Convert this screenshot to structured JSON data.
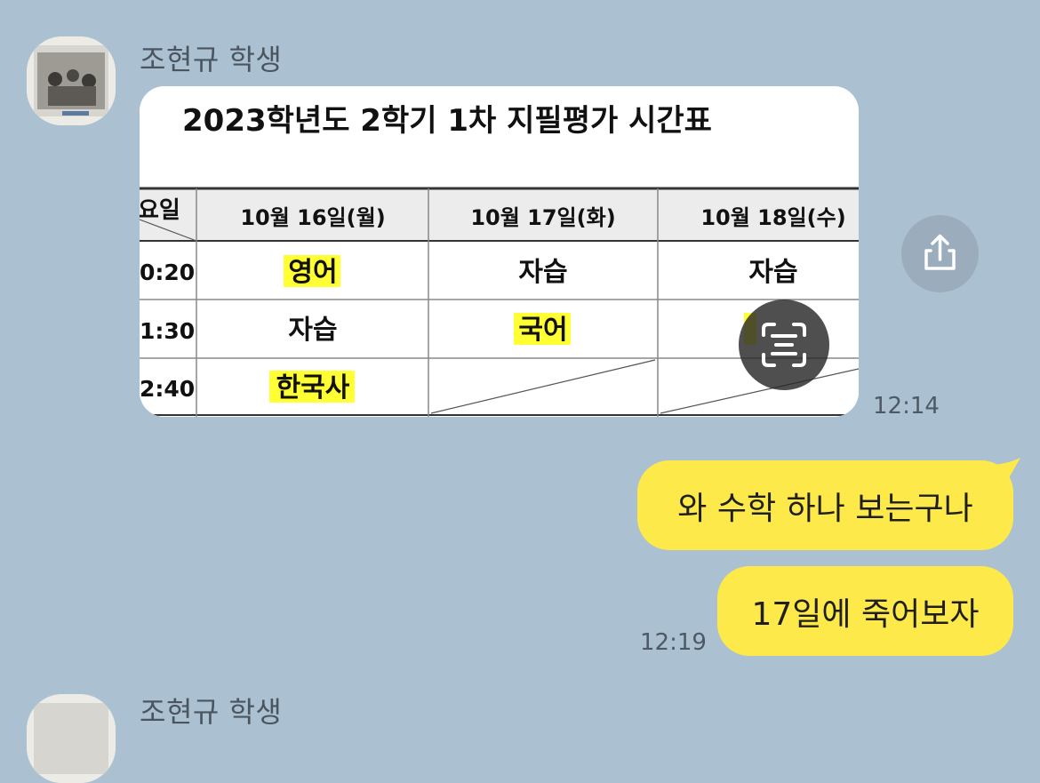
{
  "messages": {
    "incoming_image": {
      "sender": "조현규 학생",
      "time": "12:14",
      "image": {
        "title": "2023학년도 2학기 1차 지필평가 시간표",
        "corner_header": "요일",
        "columns": [
          "10월 16일(월)",
          "10월 17일(화)",
          "10월 18일(수)"
        ],
        "rows": [
          {
            "time": "0:20",
            "cells": [
              "영어",
              "자습",
              "자습"
            ]
          },
          {
            "time": "1:30",
            "cells": [
              "자습",
              "국어",
              ""
            ]
          },
          {
            "time": "2:40",
            "cells": [
              "한국사",
              "",
              ""
            ]
          }
        ]
      }
    },
    "outgoing_1": {
      "text": "와 수학 하나 보는구나"
    },
    "outgoing_2": {
      "text": "17일에 죽어보자",
      "time": "12:19"
    },
    "next_sender": {
      "sender": "조현규 학생"
    }
  },
  "icons": {
    "share": "share-icon",
    "text_scan": "text-scan-icon"
  },
  "colors": {
    "chat_background": "#abc1d1",
    "outgoing_bubble": "#fee94a",
    "highlight": "#ffff33"
  }
}
